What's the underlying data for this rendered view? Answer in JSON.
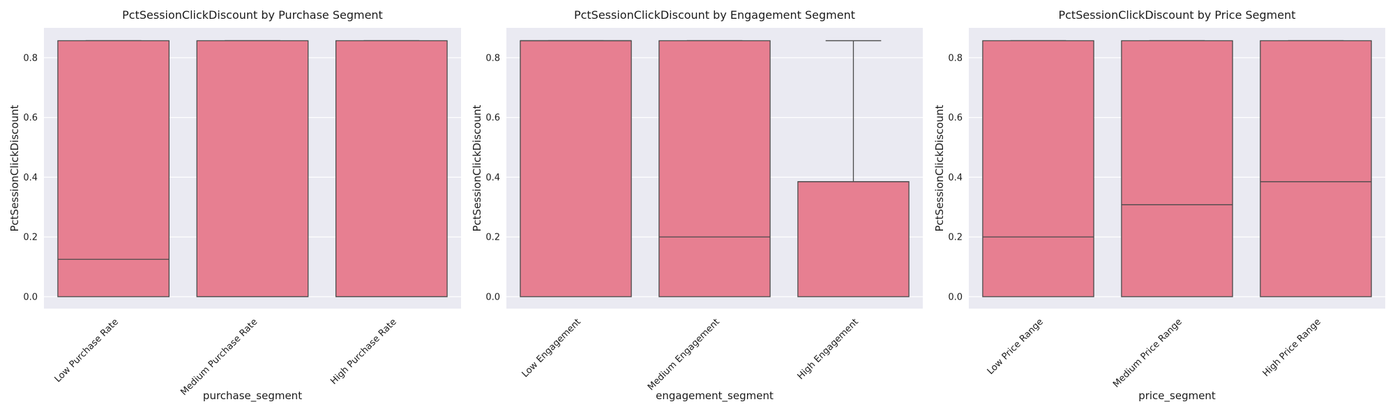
{
  "chart_data": [
    {
      "type": "box",
      "title": "PctSessionClickDiscount by Purchase Segment",
      "xlabel": "purchase_segment",
      "ylabel": "PctSessionClickDiscount",
      "ylim": [
        -0.04,
        0.9
      ],
      "yticks": [
        "0.0",
        "0.2",
        "0.4",
        "0.6",
        "0.8"
      ],
      "grid": true,
      "categories": [
        "Low Purchase Rate",
        "Medium Purchase Rate",
        "High Purchase Rate"
      ],
      "boxes": [
        {
          "q1": 0.0,
          "median": 0.125,
          "q3": 0.857,
          "whisker_low": 0.0,
          "whisker_high": 0.857
        },
        {
          "q1": 0.0,
          "median": 0.0,
          "q3": 0.857,
          "whisker_low": 0.0,
          "whisker_high": 0.857
        },
        {
          "q1": 0.0,
          "median": 0.0,
          "q3": 0.857,
          "whisker_low": 0.0,
          "whisker_high": 0.857
        }
      ],
      "box_color": "#e77f91"
    },
    {
      "type": "box",
      "title": "PctSessionClickDiscount by Engagement Segment",
      "xlabel": "engagement_segment",
      "ylabel": "PctSessionClickDiscount",
      "ylim": [
        -0.04,
        0.9
      ],
      "yticks": [
        "0.0",
        "0.2",
        "0.4",
        "0.6",
        "0.8"
      ],
      "grid": true,
      "categories": [
        "Low Engagement",
        "Medium Engagement",
        "High Engagement"
      ],
      "boxes": [
        {
          "q1": 0.0,
          "median": 0.857,
          "q3": 0.857,
          "whisker_low": 0.0,
          "whisker_high": 0.857
        },
        {
          "q1": 0.0,
          "median": 0.2,
          "q3": 0.857,
          "whisker_low": 0.0,
          "whisker_high": 0.857
        },
        {
          "q1": 0.0,
          "median": 0.385,
          "q3": 0.385,
          "whisker_low": 0.0,
          "whisker_high": 0.857
        }
      ],
      "box_color": "#e77f91"
    },
    {
      "type": "box",
      "title": "PctSessionClickDiscount by Price Segment",
      "xlabel": "price_segment",
      "ylabel": "PctSessionClickDiscount",
      "ylim": [
        -0.04,
        0.9
      ],
      "yticks": [
        "0.0",
        "0.2",
        "0.4",
        "0.6",
        "0.8"
      ],
      "grid": true,
      "categories": [
        "Low Price Range",
        "Medium Price Range",
        "High Price Range"
      ],
      "boxes": [
        {
          "q1": 0.0,
          "median": 0.2,
          "q3": 0.857,
          "whisker_low": 0.0,
          "whisker_high": 0.857
        },
        {
          "q1": 0.0,
          "median": 0.308,
          "q3": 0.857,
          "whisker_low": 0.0,
          "whisker_high": 0.857
        },
        {
          "q1": 0.0,
          "median": 0.385,
          "q3": 0.857,
          "whisker_low": 0.0,
          "whisker_high": 0.857
        }
      ],
      "box_color": "#e77f91"
    }
  ]
}
